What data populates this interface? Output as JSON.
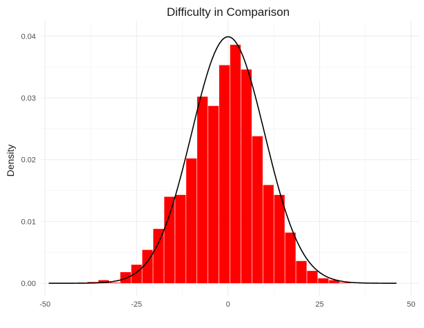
{
  "chart_data": {
    "type": "bar",
    "title": "Difficulty in Comparison",
    "xlabel": "",
    "ylabel": "Density",
    "xlim": [
      -51,
      52
    ],
    "ylim": [
      -0.002,
      0.0425
    ],
    "x_ticks": [
      -50,
      -25,
      0,
      25,
      50
    ],
    "x_tick_labels": [
      "-50",
      "-25",
      "0",
      "25",
      "50"
    ],
    "y_ticks": [
      0.0,
      0.01,
      0.02,
      0.03,
      0.04
    ],
    "y_tick_labels": [
      "0.00",
      "0.01",
      "0.02",
      "0.03",
      "0.04"
    ],
    "grid": true,
    "bar_color": "#FF0000",
    "bin_width": 3.1,
    "histogram": {
      "bin_centers": [
        -40,
        -37,
        -34,
        -31,
        -28,
        -25,
        -22,
        -19,
        -16,
        -13,
        -10,
        -7,
        -4,
        -1,
        2,
        5,
        8,
        11,
        14,
        17,
        20,
        23,
        26,
        29,
        32,
        35
      ],
      "density": [
        0.0001,
        0.0002,
        0.0005,
        0.0001,
        0.0018,
        0.003,
        0.0054,
        0.0088,
        0.014,
        0.0143,
        0.0202,
        0.0302,
        0.0287,
        0.0353,
        0.0386,
        0.0346,
        0.0238,
        0.0159,
        0.0143,
        0.0082,
        0.0036,
        0.002,
        0.0008,
        0.0005,
        0.0001,
        0.0
      ]
    },
    "density_curve": {
      "color": "#000000",
      "mean": 0,
      "sd": 10,
      "x_range": [
        -49,
        46
      ]
    }
  }
}
